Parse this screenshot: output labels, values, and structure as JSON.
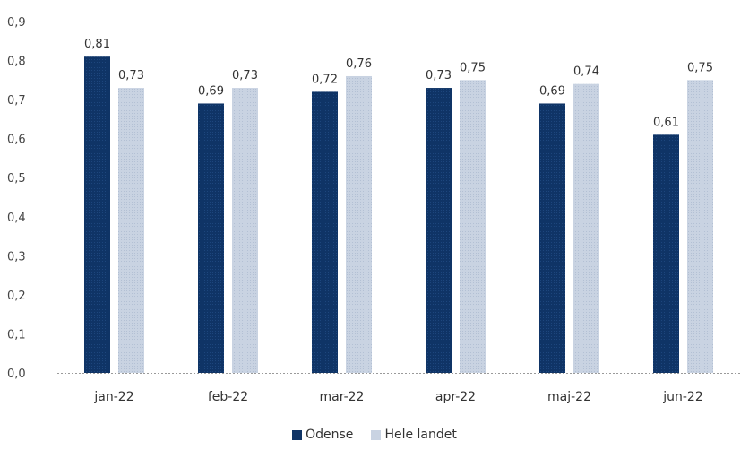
{
  "chart_data": {
    "type": "bar",
    "categories": [
      "jan-22",
      "feb-22",
      "mar-22",
      "apr-22",
      "maj-22",
      "jun-22"
    ],
    "series": [
      {
        "name": "Odense",
        "color": "#0f3466",
        "values": [
          0.81,
          0.69,
          0.72,
          0.73,
          0.69,
          0.61
        ],
        "labels": [
          "0,81",
          "0,69",
          "0,72",
          "0,73",
          "0,69",
          "0,61"
        ]
      },
      {
        "name": "Hele landet",
        "color": "#c9d3e2",
        "values": [
          0.73,
          0.73,
          0.76,
          0.75,
          0.74,
          0.75
        ],
        "labels": [
          "0,73",
          "0,73",
          "0,76",
          "0,75",
          "0,74",
          "0,75"
        ]
      }
    ],
    "ylim": [
      0,
      0.9
    ],
    "yticks": [
      "0,0",
      "0,1",
      "0,2",
      "0,3",
      "0,4",
      "0,5",
      "0,6",
      "0,7",
      "0,8",
      "0,9"
    ],
    "grid": false,
    "legend_position": "bottom"
  }
}
